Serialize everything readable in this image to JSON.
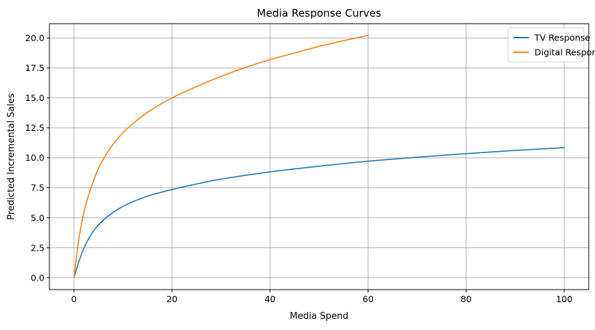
{
  "chart_data": {
    "type": "line",
    "title": "Media Response Curves",
    "xlabel": "Media Spend",
    "ylabel": "Predicted Incremental Sales",
    "xlim": [
      -5,
      105
    ],
    "ylim": [
      -1.0,
      21.2
    ],
    "xticks": [
      0,
      20,
      40,
      60,
      80,
      100
    ],
    "xtick_labels": [
      "0",
      "20",
      "40",
      "60",
      "80",
      "100"
    ],
    "yticks": [
      0,
      2.5,
      5,
      7.5,
      10,
      12.5,
      15,
      17.5,
      20
    ],
    "ytick_labels": [
      "0.0",
      "2.5",
      "5.0",
      "7.5",
      "10.0",
      "12.5",
      "15.0",
      "17.5",
      "20.0"
    ],
    "grid": true,
    "legend_position": "top-right",
    "series": [
      {
        "name": "TV Response",
        "color": "#1f77b4",
        "x": [
          0,
          1,
          2,
          3,
          4,
          5,
          7,
          10,
          15,
          20,
          25,
          30,
          40,
          50,
          60,
          70,
          80,
          90,
          100
        ],
        "y": [
          0,
          1.33,
          2.42,
          3.25,
          3.9,
          4.4,
          5.15,
          5.95,
          6.8,
          7.35,
          7.82,
          8.22,
          8.83,
          9.3,
          9.72,
          10.05,
          10.35,
          10.62,
          10.85
        ]
      },
      {
        "name": "Digital Response",
        "color": "#ff7f0e",
        "x": [
          0,
          1,
          2,
          3,
          4,
          5,
          6,
          8,
          10,
          12,
          15,
          20,
          25,
          30,
          35,
          40,
          45,
          50,
          55,
          60
        ],
        "y": [
          0,
          3.2,
          5.4,
          6.9,
          8.1,
          9.1,
          9.9,
          11.15,
          12.1,
          12.85,
          13.8,
          15.0,
          15.95,
          16.8,
          17.55,
          18.2,
          18.75,
          19.3,
          19.78,
          20.22
        ]
      }
    ]
  }
}
